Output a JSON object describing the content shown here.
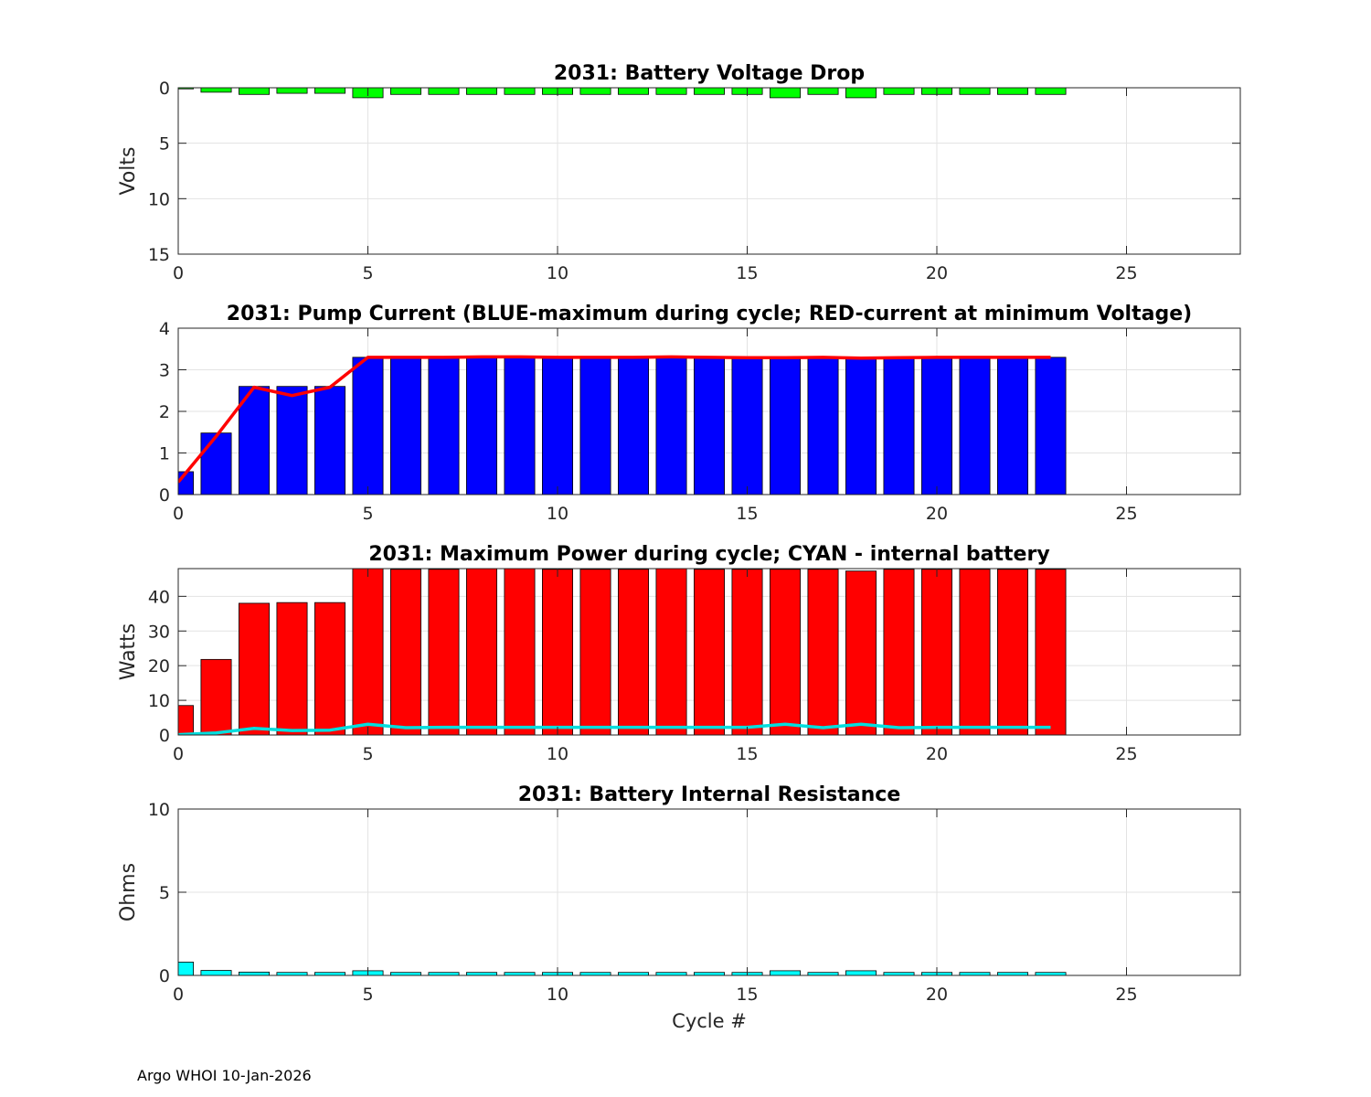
{
  "footer": "Argo WHOI 10-Jan-2026",
  "chart_data": [
    {
      "type": "bar",
      "title": "2031: Battery Voltage Drop",
      "ylabel": "Volts",
      "xlabel": "",
      "xlim": [
        0,
        28
      ],
      "ylim": [
        0,
        15
      ],
      "y_reversed": true,
      "xticks": [
        0,
        5,
        10,
        15,
        20,
        25
      ],
      "yticks": [
        0,
        5,
        10,
        15
      ],
      "grid": true,
      "bar_color": "#00ff00",
      "x": [
        0,
        1,
        2,
        3,
        4,
        5,
        6,
        7,
        8,
        9,
        10,
        11,
        12,
        13,
        14,
        15,
        16,
        17,
        18,
        19,
        20,
        21,
        22,
        23
      ],
      "values": [
        0.1,
        0.4,
        0.6,
        0.5,
        0.5,
        0.9,
        0.6,
        0.6,
        0.6,
        0.6,
        0.6,
        0.6,
        0.6,
        0.6,
        0.6,
        0.6,
        0.9,
        0.6,
        0.9,
        0.6,
        0.6,
        0.6,
        0.6,
        0.6
      ]
    },
    {
      "type": "bar",
      "title": "2031: Pump Current (BLUE-maximum during cycle; RED-current at minimum Voltage)",
      "ylabel": "",
      "xlabel": "",
      "xlim": [
        0,
        28
      ],
      "ylim": [
        0,
        4
      ],
      "xticks": [
        0,
        5,
        10,
        15,
        20,
        25
      ],
      "yticks": [
        0,
        1,
        2,
        3,
        4
      ],
      "grid": true,
      "bar_color": "#0000ff",
      "line_color": "#ff0000",
      "x": [
        0,
        1,
        2,
        3,
        4,
        5,
        6,
        7,
        8,
        9,
        10,
        11,
        12,
        13,
        14,
        15,
        16,
        17,
        18,
        19,
        20,
        21,
        22,
        23
      ],
      "values": [
        0.55,
        1.48,
        2.6,
        2.6,
        2.6,
        3.3,
        3.3,
        3.3,
        3.3,
        3.3,
        3.3,
        3.3,
        3.3,
        3.3,
        3.3,
        3.3,
        3.3,
        3.3,
        3.3,
        3.3,
        3.3,
        3.3,
        3.3,
        3.3
      ],
      "line_values": [
        0.3,
        1.4,
        2.58,
        2.38,
        2.58,
        3.3,
        3.3,
        3.3,
        3.31,
        3.31,
        3.3,
        3.3,
        3.3,
        3.31,
        3.3,
        3.29,
        3.29,
        3.3,
        3.28,
        3.29,
        3.3,
        3.3,
        3.3,
        3.3
      ]
    },
    {
      "type": "bar",
      "title": "2031: Maximum Power during cycle; CYAN - internal battery",
      "ylabel": "Watts",
      "xlabel": "",
      "xlim": [
        0,
        28
      ],
      "ylim": [
        0,
        48
      ],
      "xticks": [
        0,
        5,
        10,
        15,
        20,
        25
      ],
      "yticks": [
        0,
        10,
        20,
        30,
        40
      ],
      "grid": true,
      "bar_color": "#ff0000",
      "line_color": "#00dede",
      "x": [
        0,
        1,
        2,
        3,
        4,
        5,
        6,
        7,
        8,
        9,
        10,
        11,
        12,
        13,
        14,
        15,
        16,
        17,
        18,
        19,
        20,
        21,
        22,
        23
      ],
      "values": [
        8.5,
        21.8,
        38,
        38.2,
        38.2,
        48,
        47.8,
        47.8,
        48,
        48,
        47.8,
        47.8,
        47.8,
        48,
        47.8,
        47.8,
        47.8,
        47.8,
        47.3,
        47.8,
        47.8,
        47.8,
        47.8,
        47.8
      ],
      "line_values": [
        0.1,
        0.6,
        1.9,
        1.3,
        1.4,
        3.1,
        2.1,
        2.2,
        2.2,
        2.2,
        2.2,
        2.2,
        2.2,
        2.2,
        2.2,
        2.2,
        3.1,
        2.1,
        3.1,
        2.1,
        2.2,
        2.2,
        2.2,
        2.2
      ]
    },
    {
      "type": "bar",
      "title": "2031: Battery Internal Resistance",
      "ylabel": "Ohms",
      "xlabel": "Cycle #",
      "xlim": [
        0,
        28
      ],
      "ylim": [
        0,
        10
      ],
      "xticks": [
        0,
        5,
        10,
        15,
        20,
        25
      ],
      "yticks": [
        0,
        5,
        10
      ],
      "grid": true,
      "bar_color": "#00ffff",
      "x": [
        0,
        1,
        2,
        3,
        4,
        5,
        6,
        7,
        8,
        9,
        10,
        11,
        12,
        13,
        14,
        15,
        16,
        17,
        18,
        19,
        20,
        21,
        22,
        23
      ],
      "values": [
        0.8,
        0.3,
        0.2,
        0.18,
        0.18,
        0.28,
        0.18,
        0.18,
        0.18,
        0.18,
        0.18,
        0.18,
        0.18,
        0.18,
        0.18,
        0.18,
        0.28,
        0.18,
        0.28,
        0.18,
        0.18,
        0.18,
        0.18,
        0.18
      ]
    }
  ]
}
